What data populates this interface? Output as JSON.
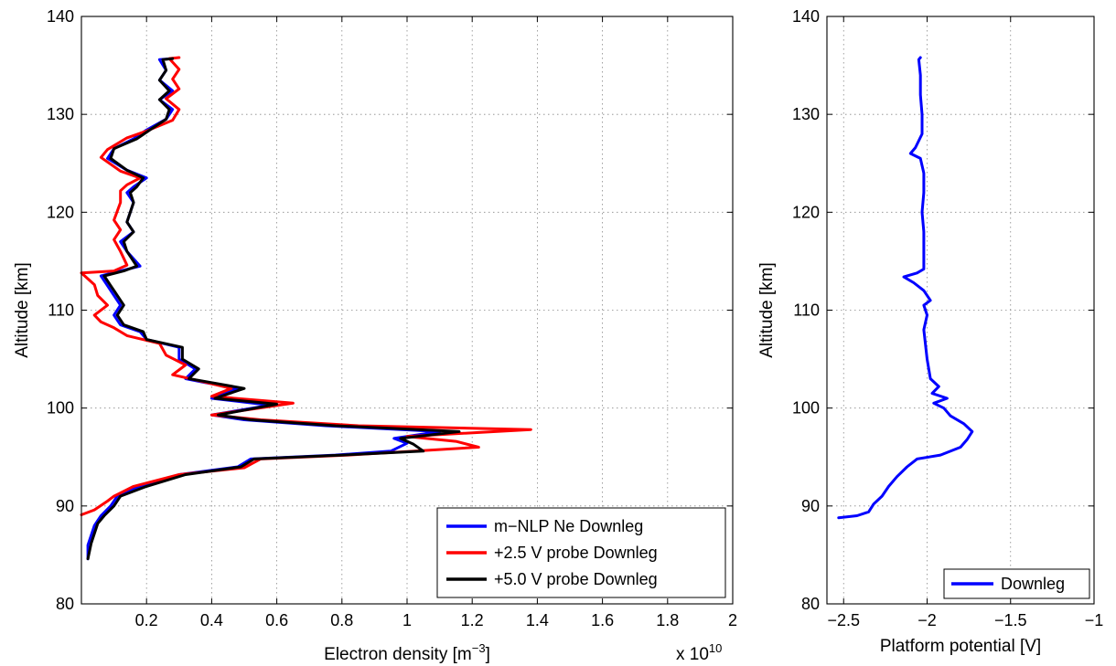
{
  "chart_data": [
    {
      "type": "line",
      "xlabel": "Electron density [m",
      "xlabel_sup": "−3",
      "xlabel_end": "]",
      "ylabel": "Altitude [km]",
      "exponent_label": "x 10",
      "exponent_sup": "10",
      "xlim": [
        0,
        2
      ],
      "ylim": [
        80,
        140
      ],
      "xticks": [
        0.2,
        0.4,
        0.6,
        0.8,
        1,
        1.2,
        1.4,
        1.6,
        1.8,
        2
      ],
      "xtick_labels": [
        "0.2",
        "0.4",
        "0.6",
        "0.8",
        "1",
        "1.2",
        "1.4",
        "1.6",
        "1.8",
        "2"
      ],
      "yticks": [
        80,
        90,
        100,
        110,
        120,
        130,
        140
      ],
      "ytick_labels": [
        "80",
        "90",
        "100",
        "110",
        "120",
        "130",
        "140"
      ],
      "grid": true,
      "legend_position": "bottom-right",
      "series": [
        {
          "name": "m−NLP Ne Downleg",
          "color": "#0000ff",
          "points": [
            [
              0.02,
              84.6
            ],
            [
              0.02,
              86
            ],
            [
              0.04,
              88
            ],
            [
              0.06,
              89
            ],
            [
              0.09,
              90
            ],
            [
              0.11,
              91
            ],
            [
              0.18,
              92
            ],
            [
              0.3,
              93.2
            ],
            [
              0.48,
              94
            ],
            [
              0.52,
              94.8
            ],
            [
              0.78,
              95.2
            ],
            [
              0.95,
              95.6
            ],
            [
              1.0,
              96.4
            ],
            [
              0.96,
              96.9
            ],
            [
              1.1,
              97.6
            ],
            [
              0.75,
              98.2
            ],
            [
              0.5,
              98.8
            ],
            [
              0.4,
              99.3
            ],
            [
              0.58,
              100.3
            ],
            [
              0.4,
              101
            ],
            [
              0.48,
              102
            ],
            [
              0.38,
              102.6
            ],
            [
              0.32,
              103
            ],
            [
              0.35,
              104
            ],
            [
              0.3,
              105
            ],
            [
              0.3,
              106.2
            ],
            [
              0.2,
              107
            ],
            [
              0.18,
              107.8
            ],
            [
              0.12,
              108.5
            ],
            [
              0.1,
              109.5
            ],
            [
              0.12,
              110.5
            ],
            [
              0.1,
              111.5
            ],
            [
              0.08,
              112.5
            ],
            [
              0.06,
              113.5
            ],
            [
              0.12,
              114
            ],
            [
              0.18,
              114.5
            ],
            [
              0.14,
              116
            ],
            [
              0.12,
              117
            ],
            [
              0.16,
              118
            ],
            [
              0.14,
              119
            ],
            [
              0.16,
              121
            ],
            [
              0.14,
              122
            ],
            [
              0.16,
              122.6
            ],
            [
              0.2,
              123.5
            ],
            [
              0.14,
              124.3
            ],
            [
              0.08,
              125.5
            ],
            [
              0.1,
              126.5
            ],
            [
              0.16,
              127.5
            ],
            [
              0.2,
              128.4
            ],
            [
              0.26,
              129.5
            ],
            [
              0.28,
              130.5
            ],
            [
              0.24,
              131.5
            ],
            [
              0.28,
              132.4
            ],
            [
              0.24,
              133.5
            ],
            [
              0.26,
              134.5
            ],
            [
              0.24,
              135.6
            ],
            [
              0.28,
              135.7
            ]
          ]
        },
        {
          "name": "+2.5 V probe Downleg",
          "color": "#ff0000",
          "points": [
            [
              0.0,
              89.1
            ],
            [
              0.04,
              89.6
            ],
            [
              0.08,
              90.5
            ],
            [
              0.1,
              91
            ],
            [
              0.16,
              92
            ],
            [
              0.3,
              93.2
            ],
            [
              0.5,
              93.9
            ],
            [
              0.55,
              94.8
            ],
            [
              0.82,
              95.2
            ],
            [
              1.22,
              96
            ],
            [
              1.15,
              96.6
            ],
            [
              1.0,
              97.1
            ],
            [
              1.38,
              97.8
            ],
            [
              0.85,
              98.2
            ],
            [
              0.55,
              98.8
            ],
            [
              0.4,
              99.3
            ],
            [
              0.65,
              100.5
            ],
            [
              0.4,
              101.2
            ],
            [
              0.46,
              102
            ],
            [
              0.36,
              102.8
            ],
            [
              0.28,
              103.4
            ],
            [
              0.32,
              104.4
            ],
            [
              0.26,
              105.4
            ],
            [
              0.24,
              106.6
            ],
            [
              0.14,
              107.4
            ],
            [
              0.1,
              108.2
            ],
            [
              0.06,
              108.8
            ],
            [
              0.04,
              109.5
            ],
            [
              0.08,
              110.5
            ],
            [
              0.05,
              111.5
            ],
            [
              0.04,
              112.6
            ],
            [
              0.0,
              113.8
            ],
            [
              0.1,
              114
            ],
            [
              0.14,
              114.6
            ],
            [
              0.12,
              116
            ],
            [
              0.1,
              117.2
            ],
            [
              0.12,
              118.2
            ],
            [
              0.1,
              119.2
            ],
            [
              0.12,
              121
            ],
            [
              0.12,
              122.2
            ],
            [
              0.14,
              122.8
            ],
            [
              0.18,
              123.5
            ],
            [
              0.12,
              124.2
            ],
            [
              0.06,
              125.6
            ],
            [
              0.08,
              126.4
            ],
            [
              0.14,
              127.6
            ],
            [
              0.2,
              128.3
            ],
            [
              0.28,
              129.4
            ],
            [
              0.3,
              130.5
            ],
            [
              0.26,
              131.6
            ],
            [
              0.3,
              132.6
            ],
            [
              0.28,
              133.6
            ],
            [
              0.3,
              134.6
            ],
            [
              0.27,
              135.7
            ],
            [
              0.3,
              135.8
            ]
          ]
        },
        {
          "name": "+5.0 V probe Downleg",
          "color": "#000000",
          "points": [
            [
              0.02,
              84.6
            ],
            [
              0.03,
              86.2
            ],
            [
              0.05,
              88.2
            ],
            [
              0.07,
              89
            ],
            [
              0.1,
              90
            ],
            [
              0.12,
              91
            ],
            [
              0.2,
              92
            ],
            [
              0.32,
              93.2
            ],
            [
              0.49,
              94
            ],
            [
              0.53,
              94.8
            ],
            [
              0.8,
              95.2
            ],
            [
              1.05,
              95.6
            ],
            [
              1.02,
              96.3
            ],
            [
              0.98,
              96.9
            ],
            [
              1.16,
              97.6
            ],
            [
              0.78,
              98.2
            ],
            [
              0.52,
              98.8
            ],
            [
              0.42,
              99.3
            ],
            [
              0.6,
              100.4
            ],
            [
              0.41,
              101
            ],
            [
              0.5,
              102
            ],
            [
              0.4,
              102.6
            ],
            [
              0.33,
              103
            ],
            [
              0.36,
              104
            ],
            [
              0.31,
              105
            ],
            [
              0.31,
              106.2
            ],
            [
              0.2,
              107
            ],
            [
              0.19,
              107.8
            ],
            [
              0.13,
              108.5
            ],
            [
              0.11,
              109.5
            ],
            [
              0.13,
              110.5
            ],
            [
              0.11,
              111.5
            ],
            [
              0.09,
              112.5
            ],
            [
              0.07,
              113.5
            ],
            [
              0.13,
              114
            ],
            [
              0.17,
              114.5
            ],
            [
              0.14,
              116
            ],
            [
              0.13,
              117
            ],
            [
              0.16,
              118
            ],
            [
              0.14,
              119
            ],
            [
              0.16,
              121
            ],
            [
              0.15,
              122
            ],
            [
              0.17,
              122.6
            ],
            [
              0.19,
              123.5
            ],
            [
              0.14,
              124.3
            ],
            [
              0.09,
              125.5
            ],
            [
              0.1,
              126.5
            ],
            [
              0.17,
              127.5
            ],
            [
              0.21,
              128.4
            ],
            [
              0.26,
              129.5
            ],
            [
              0.27,
              130.5
            ],
            [
              0.24,
              131.5
            ],
            [
              0.27,
              132.4
            ],
            [
              0.24,
              133.5
            ],
            [
              0.26,
              134.5
            ],
            [
              0.25,
              135.6
            ],
            [
              0.28,
              135.7
            ]
          ]
        }
      ]
    },
    {
      "type": "line",
      "xlabel": "Platform potential [V]",
      "ylabel": "Altitude [km]",
      "xlim": [
        -2.6,
        -1
      ],
      "ylim": [
        80,
        140
      ],
      "xticks": [
        -2.5,
        -2,
        -1.5,
        -1
      ],
      "xtick_labels": [
        "−2.5",
        "−2",
        "−1.5",
        "−1"
      ],
      "yticks": [
        80,
        90,
        100,
        110,
        120,
        130,
        140
      ],
      "ytick_labels": [
        "80",
        "90",
        "100",
        "110",
        "120",
        "130",
        "140"
      ],
      "grid": true,
      "legend_position": "bottom-right",
      "series": [
        {
          "name": "Downleg",
          "color": "#0000ff",
          "points": [
            [
              -2.53,
              88.8
            ],
            [
              -2.42,
              89.0
            ],
            [
              -2.35,
              89.4
            ],
            [
              -2.32,
              90.2
            ],
            [
              -2.27,
              91.0
            ],
            [
              -2.23,
              92.0
            ],
            [
              -2.18,
              93.0
            ],
            [
              -2.12,
              94.0
            ],
            [
              -2.06,
              94.8
            ],
            [
              -1.92,
              95.2
            ],
            [
              -1.8,
              96.0
            ],
            [
              -1.76,
              96.8
            ],
            [
              -1.73,
              97.6
            ],
            [
              -1.78,
              98.4
            ],
            [
              -1.86,
              99.2
            ],
            [
              -1.9,
              100.0
            ],
            [
              -1.96,
              100.5
            ],
            [
              -1.88,
              101.0
            ],
            [
              -1.97,
              101.5
            ],
            [
              -1.93,
              102.2
            ],
            [
              -1.98,
              103.0
            ],
            [
              -1.99,
              104.0
            ],
            [
              -2.0,
              105.0
            ],
            [
              -2.01,
              106.5
            ],
            [
              -2.02,
              108.0
            ],
            [
              -2.0,
              109.5
            ],
            [
              -2.02,
              110.5
            ],
            [
              -1.98,
              111.0
            ],
            [
              -2.02,
              112.0
            ],
            [
              -2.08,
              112.8
            ],
            [
              -2.14,
              113.4
            ],
            [
              -2.06,
              113.8
            ],
            [
              -2.02,
              114.2
            ],
            [
              -2.02,
              116.0
            ],
            [
              -2.02,
              118.0
            ],
            [
              -2.03,
              120.0
            ],
            [
              -2.02,
              122.0
            ],
            [
              -2.02,
              124.0
            ],
            [
              -2.04,
              125.5
            ],
            [
              -2.1,
              126.0
            ],
            [
              -2.07,
              126.6
            ],
            [
              -2.03,
              128.0
            ],
            [
              -2.03,
              130.0
            ],
            [
              -2.04,
              132.0
            ],
            [
              -2.04,
              134.0
            ],
            [
              -2.05,
              135.6
            ],
            [
              -2.04,
              135.8
            ]
          ]
        }
      ]
    }
  ]
}
